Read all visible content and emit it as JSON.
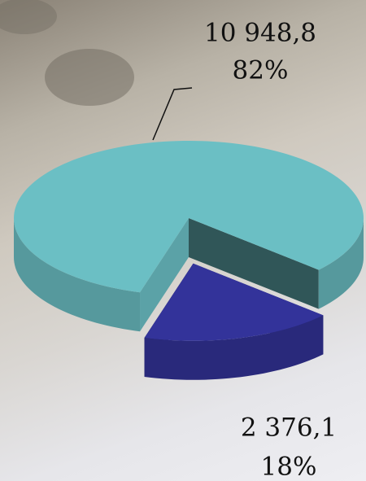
{
  "chart_data": {
    "type": "pie3d",
    "values": [
      10948.8,
      2376.1
    ],
    "value_labels": [
      "10 948,8",
      "2 376,1"
    ],
    "percents": [
      82,
      18
    ],
    "percent_labels": [
      "82%",
      "18%"
    ],
    "colors": [
      "#6bbfc4",
      "#33339a"
    ],
    "exploded": [
      false,
      true
    ]
  }
}
